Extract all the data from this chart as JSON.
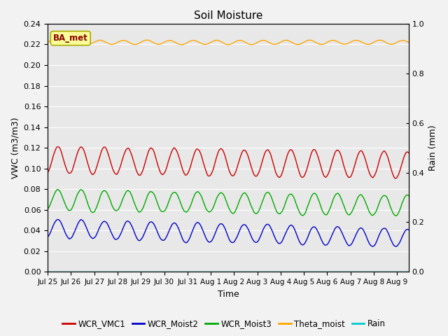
{
  "title": "Soil Moisture",
  "xlabel": "Time",
  "ylabel_left": "VWC (m3/m3)",
  "ylabel_right": "Rain (mm)",
  "ylim_left": [
    0.0,
    0.24
  ],
  "ylim_right": [
    0.0,
    1.0
  ],
  "annotation_text": "BA_met",
  "annotation_color": "#8B0000",
  "annotation_bg": "#FFFF99",
  "annotation_edge": "#AAAA00",
  "colors": {
    "WCR_VMC1": "#CC0000",
    "WCR_Moist2": "#0000CC",
    "WCR_Moist3": "#00AA00",
    "Theta_moist": "#FFA500",
    "Rain": "#00CCCC"
  },
  "bg_color": "#E8E8E8",
  "fig_bg_color": "#F2F2F2",
  "grid_color": "#FFFFFF",
  "tick_label_fontsize": 8,
  "axis_label_fontsize": 9,
  "title_fontsize": 11,
  "day_labels": [
    "Jul 25",
    "Jul 26",
    "Jul 27",
    "Jul 28",
    "Jul 29",
    "Jul 30",
    "Jul 31",
    "Aug 1",
    "Aug 2",
    "Aug 3",
    "Aug 4",
    "Aug 5",
    "Aug 6",
    "Aug 7",
    "Aug 8",
    "Aug 9"
  ],
  "yticks_left": [
    0.0,
    0.02,
    0.04,
    0.06,
    0.08,
    0.1,
    0.12,
    0.14,
    0.16,
    0.18,
    0.2,
    0.22,
    0.24
  ],
  "yticks_right": [
    0.0,
    0.2,
    0.4,
    0.6,
    0.8,
    1.0
  ]
}
